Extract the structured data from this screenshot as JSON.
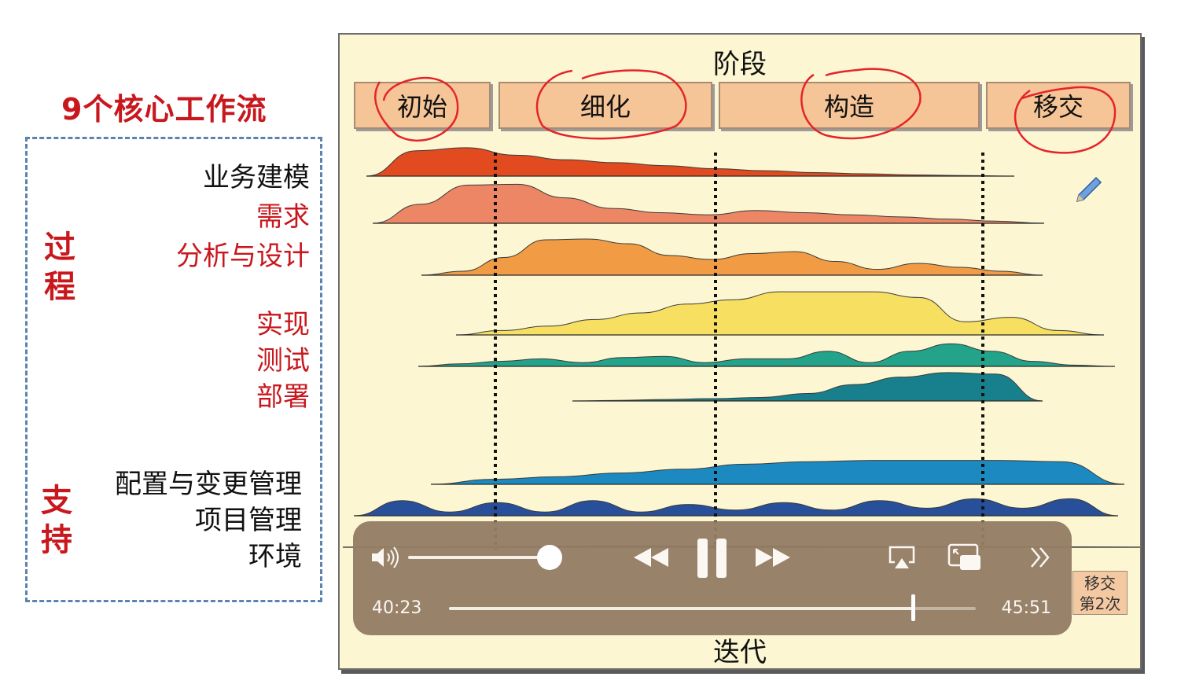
{
  "left_panel": {
    "title": "9个核心工作流",
    "process_label": "过程",
    "support_label": "支持",
    "workflows": [
      {
        "label": "业务建模"
      },
      {
        "label": "需求"
      },
      {
        "label": "分析与设计"
      },
      {
        "label": "实现"
      },
      {
        "label": "测试"
      },
      {
        "label": "部署"
      },
      {
        "label": "配置与变更管理"
      },
      {
        "label": "项目管理"
      },
      {
        "label": "环境"
      }
    ]
  },
  "slide": {
    "phase_title": "阶段",
    "phases": [
      "初始",
      "细化",
      "构造",
      "移交"
    ],
    "iteration_title": "迭代",
    "iteration_box": {
      "line1": "移交",
      "line2": "第2次"
    }
  },
  "chart_data": {
    "type": "area",
    "title": "阶段",
    "xlabel": "迭代",
    "x_categories": [
      "初始",
      "细化",
      "构造",
      "移交"
    ],
    "series": [
      {
        "name": "业务建模",
        "color": "#e24a1f",
        "profile": [
          0.0,
          0.85,
          0.95,
          0.7,
          0.55,
          0.45,
          0.35,
          0.25,
          0.18,
          0.12,
          0.08,
          0.04,
          0.02,
          0.0
        ]
      },
      {
        "name": "需求",
        "color": "#ec8664",
        "profile": [
          0.0,
          0.45,
          0.9,
          0.92,
          0.6,
          0.35,
          0.25,
          0.2,
          0.3,
          0.25,
          0.2,
          0.15,
          0.1,
          0.05,
          0.0
        ]
      },
      {
        "name": "分析与设计",
        "color": "#f19b45",
        "profile": [
          0.0,
          0.1,
          0.45,
          0.9,
          0.92,
          0.8,
          0.5,
          0.4,
          0.55,
          0.6,
          0.35,
          0.15,
          0.3,
          0.2,
          0.1,
          0.0
        ]
      },
      {
        "name": "实现",
        "color": "#f7e061",
        "profile": [
          0.0,
          0.1,
          0.2,
          0.35,
          0.5,
          0.7,
          0.8,
          0.98,
          0.98,
          0.98,
          0.85,
          0.3,
          0.4,
          0.1,
          0.0
        ]
      },
      {
        "name": "测试",
        "color": "#22a38a",
        "profile": [
          0.0,
          0.1,
          0.2,
          0.3,
          0.15,
          0.35,
          0.4,
          0.15,
          0.3,
          0.3,
          0.6,
          0.15,
          0.6,
          0.9,
          0.6,
          0.2,
          0.05,
          0.0
        ]
      },
      {
        "name": "部署",
        "color": "#17808c",
        "profile": [
          0.0,
          0.02,
          0.05,
          0.08,
          0.12,
          0.25,
          0.55,
          0.8,
          0.95,
          0.9,
          0.0
        ]
      },
      {
        "name": "配置与变更管理",
        "color": "#1c8ac0",
        "profile": [
          0.0,
          0.2,
          0.3,
          0.45,
          0.6,
          0.8,
          0.9,
          0.95,
          0.95,
          0.95,
          0.9,
          0.0
        ]
      },
      {
        "name": "项目管理",
        "color": "#284f9a",
        "profile": [
          0.0,
          0.8,
          0.2,
          0.7,
          0.2,
          0.8,
          0.2,
          0.6,
          0.3,
          0.7,
          0.3,
          0.8,
          0.4,
          0.9,
          0.4,
          0.9,
          0.0
        ]
      },
      {
        "name": "环境",
        "color": "#4a6fa8",
        "profile": [
          0.0,
          0.3,
          0.2,
          0.0
        ]
      }
    ]
  },
  "player": {
    "elapsed": "40:23",
    "total": "45:51",
    "progress": 0.8808,
    "volume": 1.0,
    "icons": [
      "volume-icon",
      "rewind-icon",
      "pause-icon",
      "forward-icon",
      "airplay-icon",
      "picture-in-picture-icon",
      "more-icon"
    ]
  }
}
